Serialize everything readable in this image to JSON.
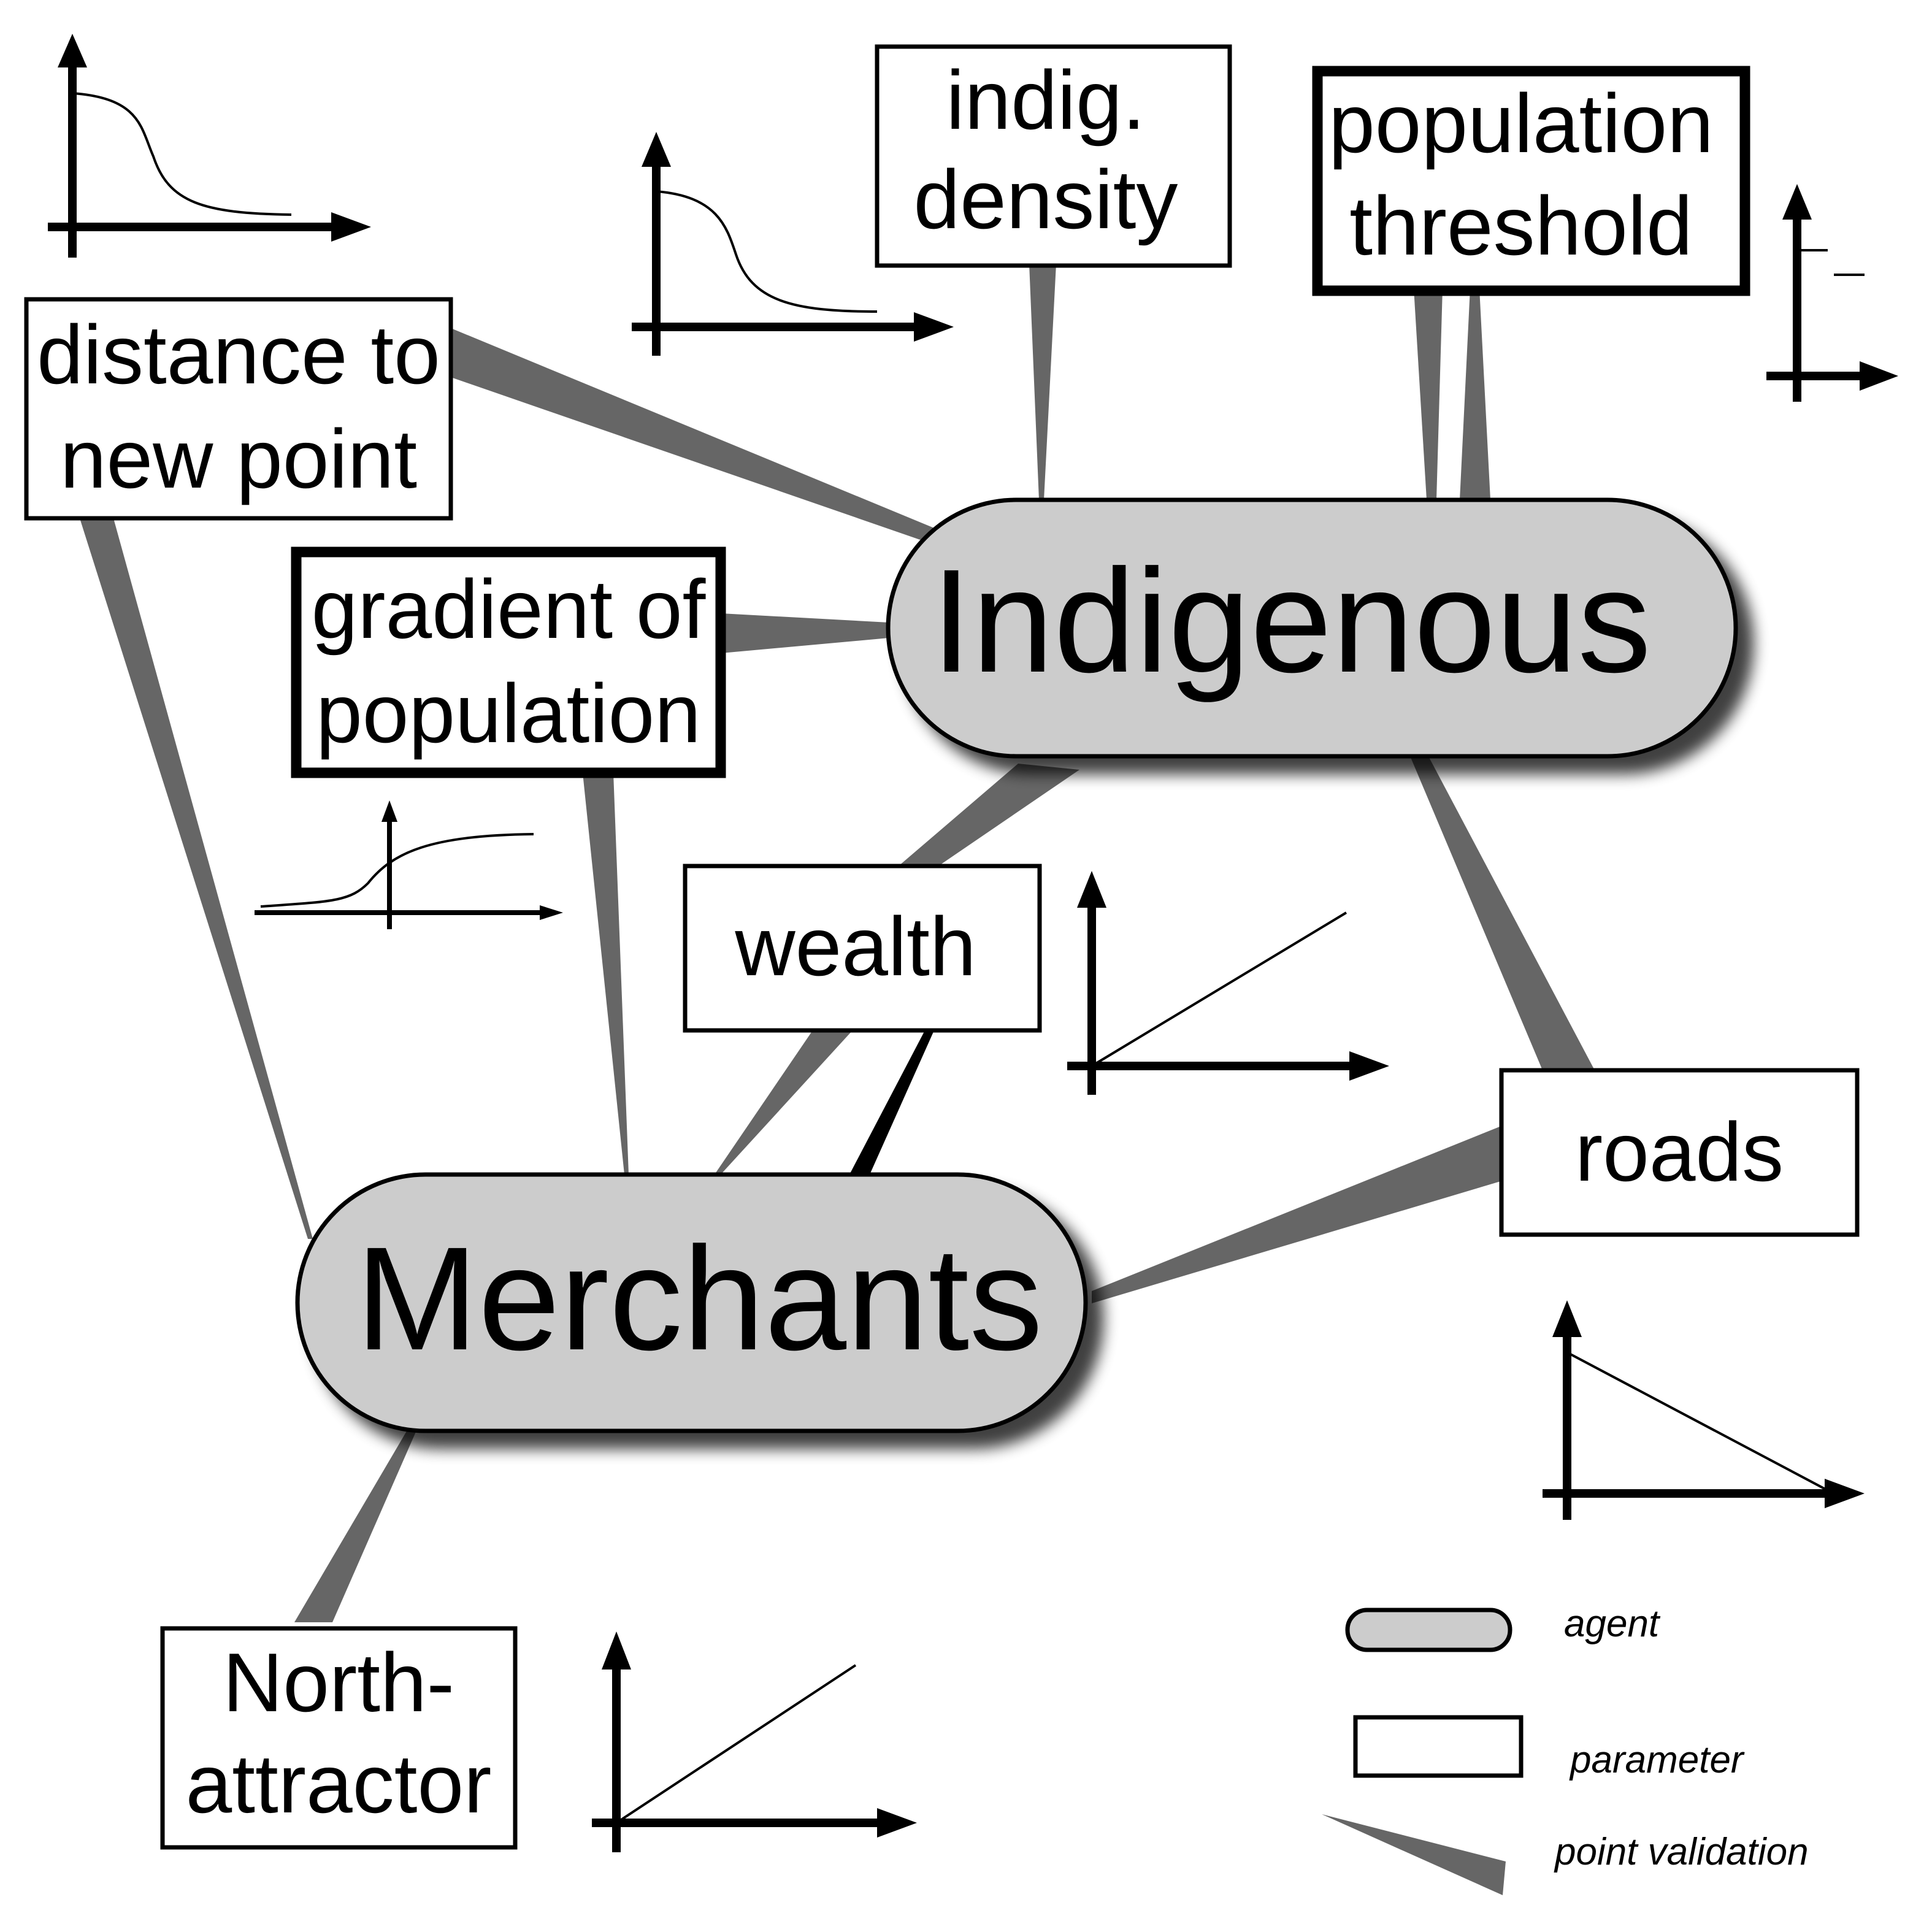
{
  "colors": {
    "agent_fill": "#cccccc",
    "link": "#666666",
    "link_strong": "#000000",
    "stroke": "#000000",
    "background": "#ffffff"
  },
  "agents": {
    "indigenous": "Indigenous",
    "merchants": "Merchants"
  },
  "parameters": {
    "distance_to_new_point": [
      "distance to",
      "new point"
    ],
    "indig_density": [
      "indig.",
      "density"
    ],
    "population_threshold": [
      "population",
      "threshold"
    ],
    "gradient_of_population": [
      "gradient of",
      "population"
    ],
    "wealth": [
      "wealth"
    ],
    "roads": [
      "roads"
    ],
    "north_attractor": [
      "North-",
      "attractor"
    ]
  },
  "response_curves": {
    "distance_to_new_point": "decreasing-sigmoid",
    "indig_density": "decreasing-sigmoid",
    "population_threshold": "step",
    "gradient_of_population": "increasing-sigmoid",
    "wealth": "increasing-linear",
    "roads": "decreasing-linear",
    "north_attractor": "increasing-linear"
  },
  "legend": {
    "agent": "agent",
    "parameter": "parameter",
    "point_validation": "point validation"
  }
}
